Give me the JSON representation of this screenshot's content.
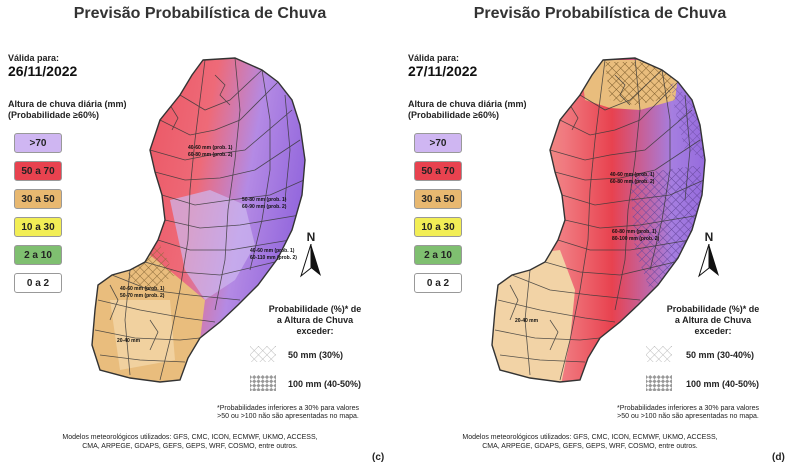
{
  "title": "Previsão Probabilística de Chuva",
  "valid_label": "Válida para:",
  "legend_title_line1": "Altura de chuva diária (mm)",
  "legend_title_line2": "(Probabilidade ≥60%)",
  "legend": [
    {
      "label": ">70",
      "color": "#c8a6f0"
    },
    {
      "label": "50 a 70",
      "color": "#e8424f"
    },
    {
      "label": "30 a 50",
      "color": "#e8b870"
    },
    {
      "label": "10 a 30",
      "color": "#f2ee55"
    },
    {
      "label": "2 a 10",
      "color": "#7fbf70"
    },
    {
      "label": "0 a 2",
      "color": "#ffffff"
    }
  ],
  "north_letter": "N",
  "prob_title_line1": "Probabilidade (%)* de",
  "prob_title_line2": "a Altura de Chuva",
  "prob_title_line3": "exceder:",
  "footnote_line1": "*Probabilidades inferiores a 30% para valores",
  "footnote_line2": ">50 ou >100 não são apresentadas no mapa.",
  "models_line1": "Modelos meteorológicos utilizados: GFS, CMC, ICON, ECMWF, UKMO, ACCESS,",
  "models_line2": "CMA, ARPEGE, GDAPS, GEFS, GEPS, WRF, COSMO, entre outros.",
  "colors": {
    "red": "#e34a52",
    "light_red": "#f08a8a",
    "purple": "#9b72e0",
    "light_purple": "#d4c2f2",
    "tan": "#e9bd7d",
    "light_tan": "#f2d6a8",
    "border": "#3a3a3a"
  },
  "panels": [
    {
      "date": "26/11/2022",
      "letter": "(c)",
      "prob_rows": [
        "50 mm (30%)",
        "100 mm (40-50%)"
      ],
      "map_labels": [
        "40-60 mm (prob. 1)",
        "60-80 mm (prob. 2)",
        "50-80 mm (prob. 1)",
        "60-90 mm (prob. 2)",
        "40-60 mm (prob. 1)",
        "60-110 mm (prob. 2)",
        "40-60 mm (prob. 1)",
        "50-70 mm (prob. 2)",
        "20-40 mm"
      ]
    },
    {
      "date": "27/11/2022",
      "letter": "(d)",
      "prob_rows": [
        "50 mm (30-40%)",
        "100 mm (40-50%)"
      ],
      "map_labels": [
        "40-60 mm (prob. 1)",
        "60-80 mm (prob. 2)",
        "60-80 mm (prob. 1)",
        "80-100 mm (prob. 2)",
        "20-40 mm"
      ]
    }
  ]
}
